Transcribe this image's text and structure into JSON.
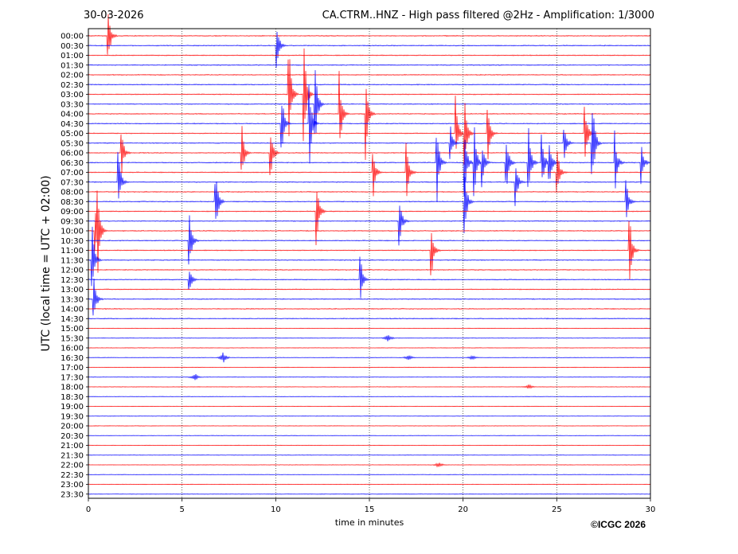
{
  "header": {
    "date": "30-03-2026",
    "title": "CA.CTRM..HNZ - High pass filtered @2Hz - Amplification: 1/3000"
  },
  "footer": {
    "copyright": "©ICGC 2026"
  },
  "chart_data": {
    "type": "line",
    "title": "CA.CTRM..HNZ - High pass filtered @2Hz - Amplification: 1/3000",
    "xlabel": "time in minutes",
    "ylabel": "UTC (local time = UTC + 02:00)",
    "xlim": [
      0,
      30
    ],
    "x_ticks": [
      0,
      5,
      10,
      15,
      20,
      25,
      30
    ],
    "row_labels": [
      "00:00",
      "00:30",
      "01:00",
      "01:30",
      "02:00",
      "02:30",
      "03:00",
      "03:30",
      "04:00",
      "04:30",
      "05:00",
      "05:30",
      "06:00",
      "06:30",
      "07:00",
      "07:30",
      "08:00",
      "08:30",
      "09:00",
      "09:30",
      "10:00",
      "10:30",
      "11:00",
      "11:30",
      "12:00",
      "12:30",
      "13:00",
      "13:30",
      "14:00",
      "14:30",
      "15:00",
      "15:30",
      "16:00",
      "16:30",
      "17:00",
      "17:30",
      "18:00",
      "18:30",
      "19:00",
      "19:30",
      "20:00",
      "20:30",
      "21:00",
      "21:30",
      "22:00",
      "22:30",
      "23:00",
      "23:30"
    ],
    "trace_colors": [
      "#ff0000",
      "#0000ff"
    ],
    "grid": "vertical dotted at x ticks",
    "events": [
      {
        "row": 0,
        "x": 1.05,
        "amp": 3.5
      },
      {
        "row": 1,
        "x": 10.05,
        "amp": 3.0
      },
      {
        "row": 6,
        "x": 10.7,
        "amp": 6.0
      },
      {
        "row": 6,
        "x": 11.5,
        "amp": 7.0
      },
      {
        "row": 7,
        "x": 12.1,
        "amp": 5.0
      },
      {
        "row": 8,
        "x": 13.4,
        "amp": 5.0
      },
      {
        "row": 8,
        "x": 14.8,
        "amp": 5.0
      },
      {
        "row": 9,
        "x": 10.3,
        "amp": 4.5
      },
      {
        "row": 9,
        "x": 11.8,
        "amp": 5.0
      },
      {
        "row": 10,
        "x": 19.6,
        "amp": 4.0
      },
      {
        "row": 10,
        "x": 21.3,
        "amp": 4.0
      },
      {
        "row": 10,
        "x": 26.5,
        "amp": 4.0
      },
      {
        "row": 10,
        "x": 20.1,
        "amp": 4.0
      },
      {
        "row": 11,
        "x": 26.9,
        "amp": 6.0
      },
      {
        "row": 11,
        "x": 25.4,
        "amp": 2.5
      },
      {
        "row": 11,
        "x": 19.3,
        "amp": 2.5
      },
      {
        "row": 12,
        "x": 1.75,
        "amp": 3.0
      },
      {
        "row": 12,
        "x": 8.2,
        "amp": 3.0
      },
      {
        "row": 12,
        "x": 9.7,
        "amp": 4.0
      },
      {
        "row": 13,
        "x": 18.6,
        "amp": 4.5
      },
      {
        "row": 13,
        "x": 20.1,
        "amp": 3.5
      },
      {
        "row": 13,
        "x": 20.6,
        "amp": 4.0
      },
      {
        "row": 13,
        "x": 21.0,
        "amp": 3.0
      },
      {
        "row": 13,
        "x": 22.3,
        "amp": 3.5
      },
      {
        "row": 13,
        "x": 23.5,
        "amp": 4.0
      },
      {
        "row": 13,
        "x": 24.2,
        "amp": 3.5
      },
      {
        "row": 13,
        "x": 24.6,
        "amp": 3.0
      },
      {
        "row": 13,
        "x": 28.1,
        "amp": 3.5
      },
      {
        "row": 13,
        "x": 29.5,
        "amp": 2.5
      },
      {
        "row": 14,
        "x": 15.2,
        "amp": 3.0
      },
      {
        "row": 14,
        "x": 17.0,
        "amp": 3.0
      },
      {
        "row": 14,
        "x": 25.0,
        "amp": 3.5
      },
      {
        "row": 15,
        "x": 1.6,
        "amp": 3.5
      },
      {
        "row": 15,
        "x": 22.8,
        "amp": 2.5
      },
      {
        "row": 17,
        "x": 6.8,
        "amp": 3.5
      },
      {
        "row": 17,
        "x": 20.1,
        "amp": 3.5
      },
      {
        "row": 17,
        "x": 28.7,
        "amp": 2.5
      },
      {
        "row": 18,
        "x": 12.2,
        "amp": 3.5
      },
      {
        "row": 19,
        "x": 16.6,
        "amp": 3.0
      },
      {
        "row": 20,
        "x": 0.35,
        "amp": 3.5
      },
      {
        "row": 20,
        "x": 0.5,
        "amp": 4.0
      },
      {
        "row": 21,
        "x": 5.4,
        "amp": 3.5
      },
      {
        "row": 22,
        "x": 18.3,
        "amp": 3.5
      },
      {
        "row": 22,
        "x": 28.9,
        "amp": 3.5
      },
      {
        "row": 23,
        "x": 0.2,
        "amp": 4.0
      },
      {
        "row": 25,
        "x": 14.5,
        "amp": 3.5
      },
      {
        "row": 25,
        "x": 5.4,
        "amp": 1.5
      },
      {
        "row": 27,
        "x": 0.3,
        "amp": 2.5
      }
    ],
    "bursts": [
      {
        "row": 31,
        "x": 16.0,
        "amp": 0.5
      },
      {
        "row": 33,
        "x": 7.2,
        "amp": 0.6
      },
      {
        "row": 33,
        "x": 17.1,
        "amp": 0.4
      },
      {
        "row": 33,
        "x": 20.5,
        "amp": 0.3
      },
      {
        "row": 35,
        "x": 5.7,
        "amp": 0.4
      },
      {
        "row": 36,
        "x": 23.5,
        "amp": 0.3
      },
      {
        "row": 44,
        "x": 18.7,
        "amp": 0.3
      }
    ]
  }
}
